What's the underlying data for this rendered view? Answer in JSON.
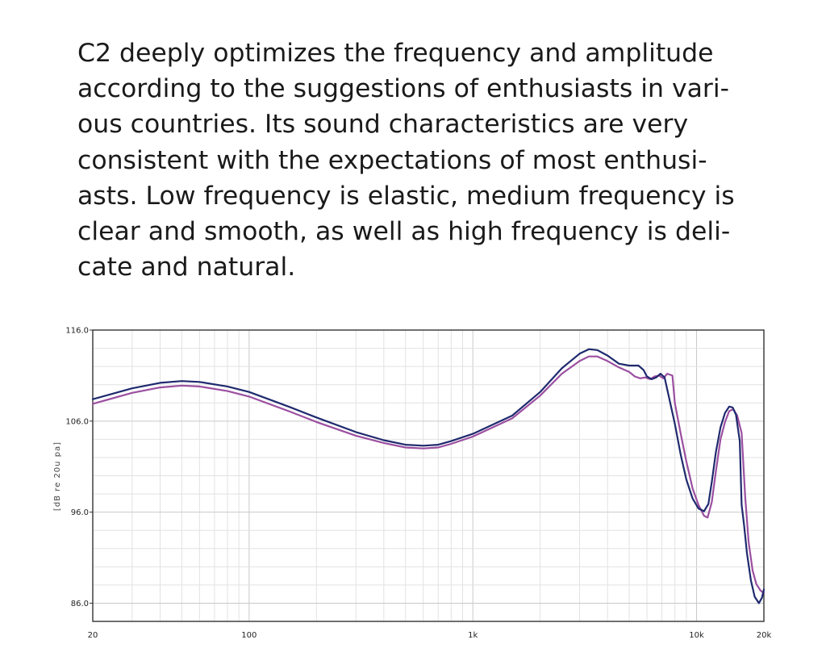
{
  "description": {
    "lines": [
      "C2 deeply optimizes the frequency and amplitude",
      "according to the suggestions of enthusiasts in vari-",
      "ous countries. Its sound characteristics are very",
      "consistent with the expectations of most enthusi-",
      "asts. Low frequency is elastic, medium frequency is",
      "clear and smooth, as well as high frequency is deli-",
      "cate and natural."
    ]
  },
  "chart_data": {
    "type": "line",
    "title": "",
    "xlabel": "",
    "ylabel": "[dB re 20u pa]",
    "x_scale": "log",
    "xlim": [
      20,
      20000
    ],
    "ylim": [
      84,
      116
    ],
    "x_ticks": [
      20,
      100,
      1000,
      10000,
      20000
    ],
    "x_tick_labels": [
      "20",
      "100",
      "1k",
      "10k",
      "20k"
    ],
    "y_ticks": [
      86,
      96,
      106,
      116
    ],
    "y_tick_labels": [
      "86.0",
      "96.0",
      "106.0",
      "116.0"
    ],
    "grid": true,
    "legend": "none",
    "series": [
      {
        "color": "#1f2a6e",
        "points": [
          [
            20,
            108.4
          ],
          [
            30,
            109.6
          ],
          [
            40,
            110.2
          ],
          [
            50,
            110.4
          ],
          [
            60,
            110.3
          ],
          [
            80,
            109.8
          ],
          [
            100,
            109.2
          ],
          [
            150,
            107.6
          ],
          [
            200,
            106.4
          ],
          [
            300,
            104.8
          ],
          [
            400,
            103.9
          ],
          [
            500,
            103.4
          ],
          [
            600,
            103.3
          ],
          [
            700,
            103.4
          ],
          [
            800,
            103.8
          ],
          [
            1000,
            104.6
          ],
          [
            1500,
            106.6
          ],
          [
            2000,
            109.2
          ],
          [
            2500,
            111.8
          ],
          [
            3000,
            113.4
          ],
          [
            3300,
            113.9
          ],
          [
            3600,
            113.8
          ],
          [
            4000,
            113.2
          ],
          [
            4500,
            112.3
          ],
          [
            5000,
            112.1
          ],
          [
            5500,
            112.1
          ],
          [
            5800,
            111.6
          ],
          [
            6000,
            110.9
          ],
          [
            6300,
            110.6
          ],
          [
            6600,
            110.8
          ],
          [
            6900,
            111.2
          ],
          [
            7200,
            110.8
          ],
          [
            7500,
            108.8
          ],
          [
            8000,
            105.7
          ],
          [
            8500,
            102.3
          ],
          [
            9000,
            99.6
          ],
          [
            9600,
            97.5
          ],
          [
            10200,
            96.4
          ],
          [
            10800,
            96.1
          ],
          [
            11300,
            96.9
          ],
          [
            11700,
            99.3
          ],
          [
            12200,
            102.6
          ],
          [
            12800,
            105.3
          ],
          [
            13400,
            106.9
          ],
          [
            14000,
            107.6
          ],
          [
            14500,
            107.5
          ],
          [
            15000,
            106.7
          ],
          [
            15600,
            103.8
          ],
          [
            15900,
            96.8
          ],
          [
            16300,
            94.6
          ],
          [
            16800,
            91.5
          ],
          [
            17500,
            88.5
          ],
          [
            18200,
            86.7
          ],
          [
            19000,
            86.0
          ],
          [
            19600,
            86.6
          ],
          [
            20000,
            87.5
          ]
        ]
      },
      {
        "color": "#9b4fa0",
        "points": [
          [
            20,
            107.9
          ],
          [
            30,
            109.1
          ],
          [
            40,
            109.7
          ],
          [
            50,
            109.9
          ],
          [
            60,
            109.8
          ],
          [
            80,
            109.3
          ],
          [
            100,
            108.7
          ],
          [
            150,
            107.1
          ],
          [
            200,
            105.9
          ],
          [
            300,
            104.4
          ],
          [
            400,
            103.6
          ],
          [
            500,
            103.1
          ],
          [
            600,
            103.0
          ],
          [
            700,
            103.1
          ],
          [
            800,
            103.5
          ],
          [
            1000,
            104.3
          ],
          [
            1500,
            106.3
          ],
          [
            2000,
            108.8
          ],
          [
            2500,
            111.2
          ],
          [
            3000,
            112.6
          ],
          [
            3300,
            113.1
          ],
          [
            3600,
            113.1
          ],
          [
            4000,
            112.6
          ],
          [
            4500,
            111.9
          ],
          [
            5000,
            111.4
          ],
          [
            5300,
            110.9
          ],
          [
            5600,
            110.7
          ],
          [
            5900,
            110.8
          ],
          [
            6200,
            110.6
          ],
          [
            6500,
            110.9
          ],
          [
            6800,
            111.0
          ],
          [
            7100,
            110.7
          ],
          [
            7400,
            111.2
          ],
          [
            7800,
            111.0
          ],
          [
            8000,
            108.0
          ],
          [
            8500,
            104.6
          ],
          [
            9000,
            101.6
          ],
          [
            9600,
            98.6
          ],
          [
            10200,
            96.8
          ],
          [
            10800,
            95.6
          ],
          [
            11200,
            95.4
          ],
          [
            11700,
            97.1
          ],
          [
            12200,
            100.5
          ],
          [
            12800,
            104.0
          ],
          [
            13400,
            105.9
          ],
          [
            14000,
            107.1
          ],
          [
            14600,
            107.3
          ],
          [
            15200,
            106.6
          ],
          [
            15900,
            104.7
          ],
          [
            16500,
            97.7
          ],
          [
            17100,
            92.7
          ],
          [
            17800,
            89.6
          ],
          [
            18500,
            88.1
          ],
          [
            19300,
            87.4
          ],
          [
            20000,
            87.1
          ]
        ]
      }
    ]
  }
}
